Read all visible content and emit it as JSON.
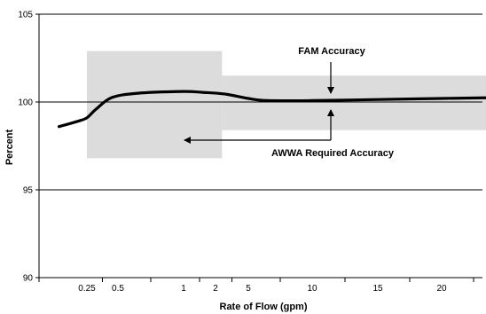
{
  "chart_data": {
    "type": "line",
    "title": "",
    "xlabel": "Rate of Flow (gpm)",
    "ylabel": "Percent",
    "ylim": [
      90,
      105
    ],
    "y_ticks": [
      "90",
      "95",
      "100",
      "105"
    ],
    "x_ticks": [
      "0.25",
      "0.5",
      "1",
      "2",
      "5",
      "10",
      "15",
      "20"
    ],
    "grid": {
      "horizontal": true,
      "vertical": false
    },
    "colors": {
      "line": "#000000",
      "band": "#dcdcdc",
      "axis": "#000000"
    },
    "series": [
      {
        "values": [
          {
            "tick": -0.9,
            "y": 98.6
          },
          {
            "tick": -0.3,
            "y": 98.9
          },
          {
            "tick": 0.0,
            "y": 99.1
          },
          {
            "tick": 0.3,
            "y": 99.6
          },
          {
            "tick": 0.8,
            "y": 100.25
          },
          {
            "tick": 1.3,
            "y": 100.5
          },
          {
            "tick": 2.0,
            "y": 100.6
          },
          {
            "tick": 2.6,
            "y": 100.55
          },
          {
            "tick": 3.3,
            "y": 100.45
          },
          {
            "tick": 4.0,
            "y": 100.2
          },
          {
            "tick": 4.3,
            "y": 100.08
          },
          {
            "tick": 5.0,
            "y": 100.08
          },
          {
            "tick": 6.0,
            "y": 100.14
          },
          {
            "tick": 7.0,
            "y": 100.2
          },
          {
            "tick": 8.0,
            "y": 100.26
          },
          {
            "tick": 9.0,
            "y": 100.3
          },
          {
            "tick": 9.6,
            "y": 100.35
          }
        ]
      }
    ],
    "bands": [
      {
        "tick_from": 0.0,
        "tick_to": 3.2,
        "y_from": 96.8,
        "y_to": 102.9
      },
      {
        "tick_from": 3.2,
        "tick_to": 9.0,
        "y_from": 98.4,
        "y_to": 101.5
      }
    ],
    "annotations": [
      {
        "id": "fam",
        "text": "FAM Accuracy"
      },
      {
        "id": "awwa",
        "text": "AWWA Required Accuracy"
      }
    ]
  }
}
